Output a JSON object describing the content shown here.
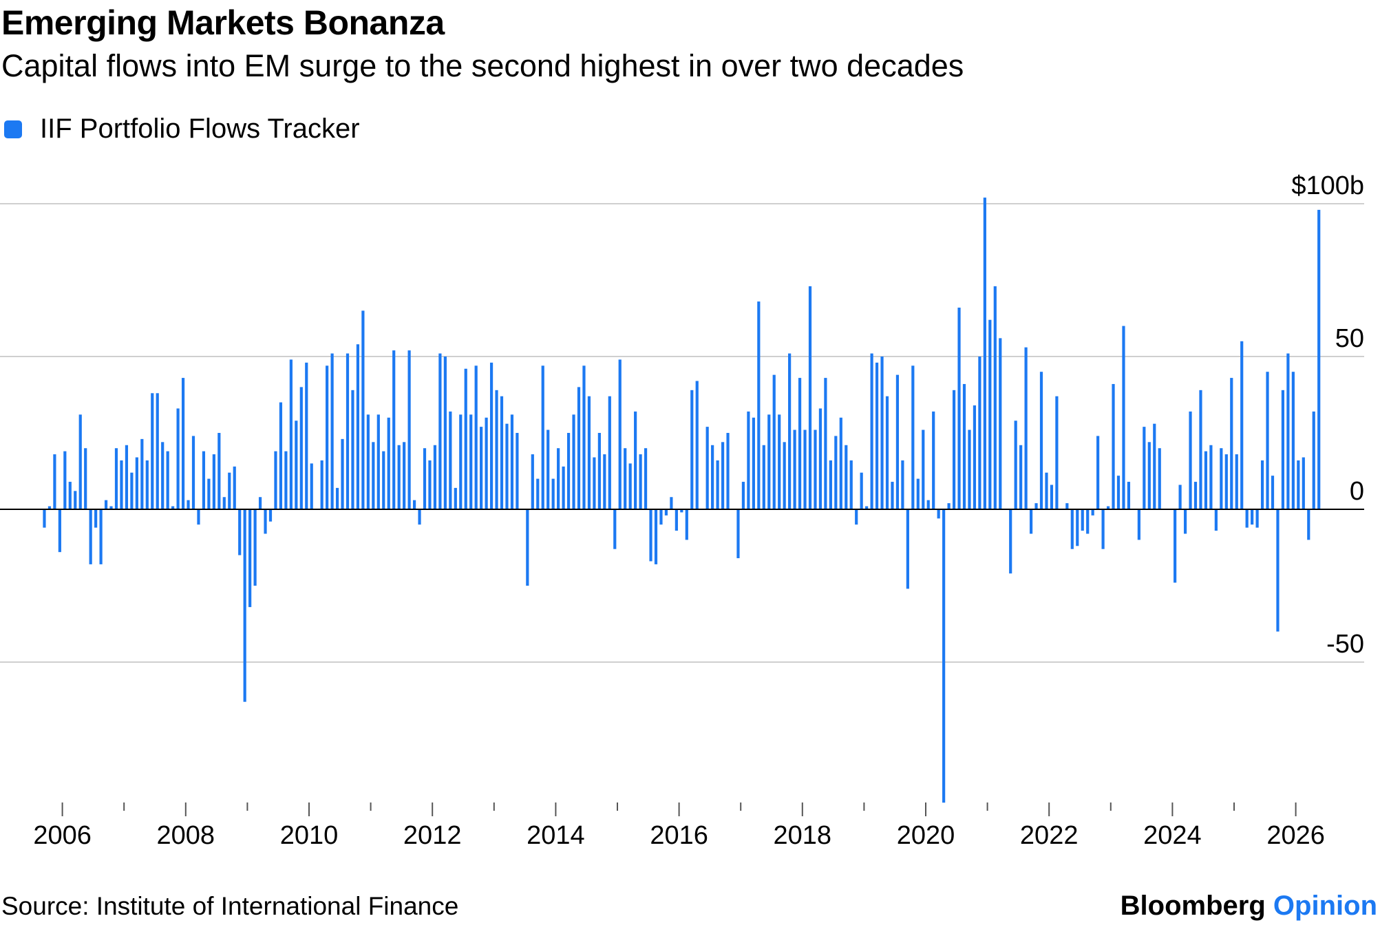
{
  "title": "Emerging Markets Bonanza",
  "subtitle": "Capital flows into EM surge to the second highest in over two decades",
  "source": "Source: Institute of International Finance",
  "brand": {
    "name": "Bloomberg",
    "suffix": "Opinion"
  },
  "colors": {
    "bar": "#1c79f2",
    "grid": "#cfcfcf",
    "zero": "#000000"
  },
  "chart_data": {
    "type": "bar",
    "title": "Emerging Markets Bonanza",
    "subtitle": "Capital flows into EM surge to the second highest in over two decades",
    "legend": [
      {
        "name": "IIF Portfolio Flows Tracker",
        "color": "#1c79f2"
      }
    ],
    "legend_position": "top-left",
    "ylabel": "$b",
    "ylim": [
      -95,
      102
    ],
    "y_ticks": [
      {
        "value": 100,
        "label": "$100b"
      },
      {
        "value": 50,
        "label": "50"
      },
      {
        "value": 0,
        "label": "0"
      },
      {
        "value": -50,
        "label": "-50"
      }
    ],
    "x_start": "2005-01",
    "frequency": "monthly",
    "xlim_years": [
      2005.25,
      2026.35
    ],
    "x_tick_labels": [
      "2006",
      "2008",
      "2010",
      "2012",
      "2014",
      "2016",
      "2018",
      "2020",
      "2022",
      "2024",
      "2026"
    ],
    "grid": true,
    "series": [
      {
        "name": "IIF Portfolio Flows Tracker",
        "values": [
          0,
          0,
          0,
          0,
          0,
          0,
          0,
          0,
          -6,
          1,
          18,
          -14,
          19,
          9,
          6,
          31,
          20,
          -18,
          -6,
          -18,
          3,
          1,
          20,
          16,
          21,
          12,
          17,
          23,
          16,
          38,
          38,
          22,
          19,
          1,
          33,
          43,
          3,
          24,
          -5,
          19,
          10,
          18,
          25,
          4,
          12,
          14,
          -15,
          -63,
          -32,
          -25,
          4,
          -8,
          -4,
          19,
          35,
          19,
          49,
          29,
          40,
          48,
          15,
          0,
          16,
          47,
          51,
          7,
          23,
          51,
          39,
          54,
          65,
          31,
          22,
          31,
          19,
          30,
          52,
          21,
          22,
          52,
          3,
          -5,
          20,
          16,
          21,
          51,
          50,
          32,
          7,
          31,
          46,
          31,
          47,
          27,
          30,
          48,
          39,
          37,
          28,
          31,
          25,
          0,
          -25,
          18,
          10,
          47,
          26,
          10,
          20,
          14,
          25,
          31,
          40,
          47,
          37,
          17,
          25,
          18,
          37,
          -13,
          49,
          20,
          15,
          32,
          18,
          20,
          -17,
          -18,
          -5,
          -2,
          4,
          -7,
          -1,
          -10,
          39,
          42,
          0,
          27,
          21,
          16,
          22,
          25,
          0,
          -16,
          9,
          32,
          30,
          68,
          21,
          31,
          44,
          31,
          22,
          51,
          26,
          43,
          26,
          73,
          26,
          33,
          43,
          16,
          24,
          30,
          21,
          16,
          -5,
          12,
          1,
          51,
          48,
          50,
          37,
          9,
          44,
          16,
          -26,
          47,
          10,
          26,
          3,
          32,
          -3,
          -96,
          2,
          39,
          66,
          41,
          26,
          34,
          50,
          102,
          62,
          73,
          56,
          0,
          -21,
          29,
          21,
          53,
          -8,
          2,
          45,
          12,
          8,
          37,
          0,
          2,
          -13,
          -12,
          -7,
          -8,
          -2,
          24,
          -13,
          1,
          41,
          11,
          60,
          9,
          0,
          -10,
          27,
          22,
          28,
          20,
          0,
          0,
          -24,
          8,
          -8,
          32,
          9,
          39,
          19,
          21,
          -7,
          20,
          18,
          43,
          18,
          55,
          -6,
          -5,
          -6,
          16,
          45,
          11,
          -40,
          39,
          51,
          45,
          16,
          17,
          -10,
          32,
          98
        ]
      }
    ]
  }
}
